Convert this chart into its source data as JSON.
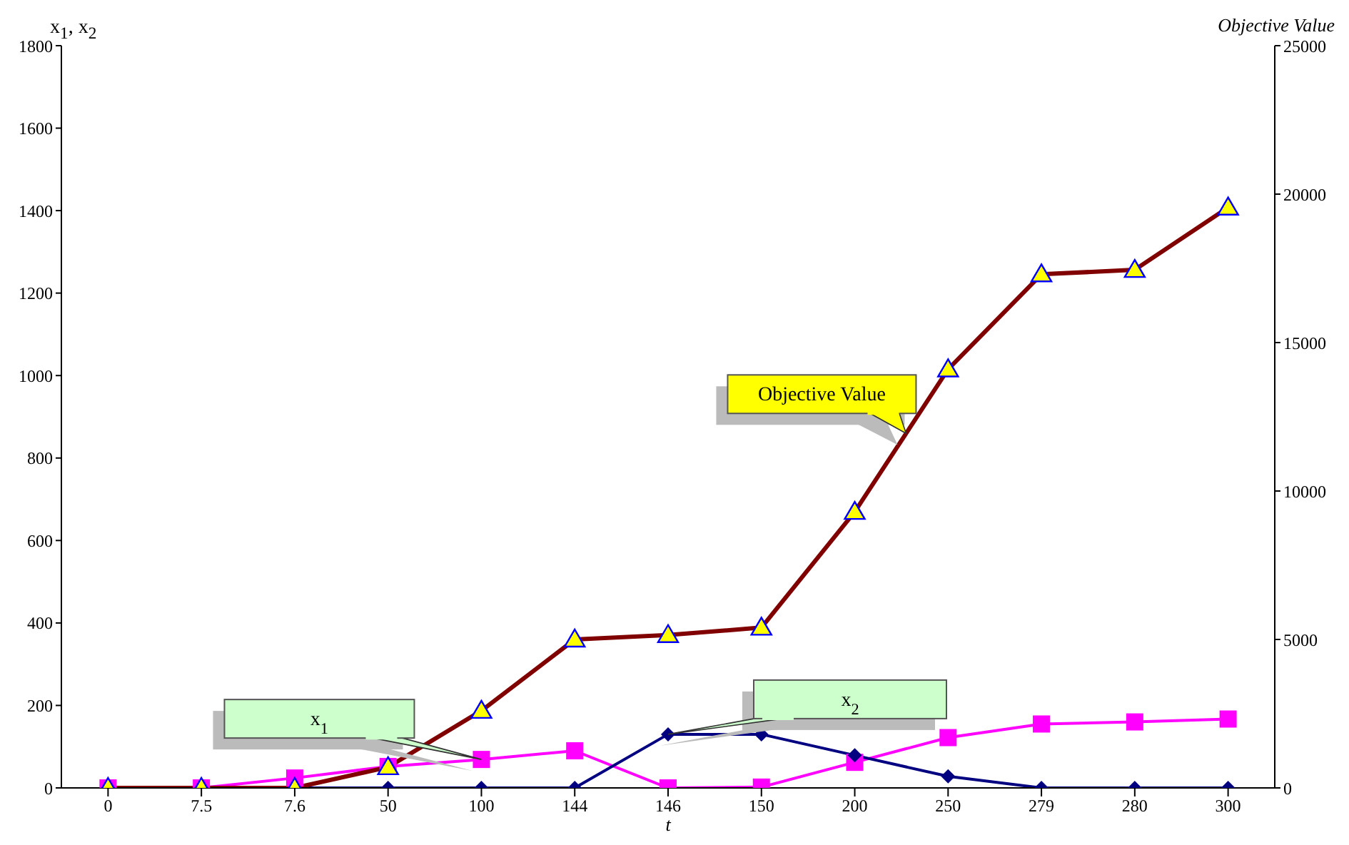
{
  "chart_data": {
    "type": "line",
    "xlabel": "t",
    "ylabel": "x$_{1}$, x$_{2}$",
    "y2label": "Objective Value",
    "categories": [
      "0",
      "7.5",
      "7.6",
      "50",
      "100",
      "144",
      "146",
      "150",
      "200",
      "250",
      "279",
      "280",
      "300"
    ],
    "series": [
      {
        "name": "x$_{1}$",
        "color": "#ff00ff",
        "marker": "square",
        "values": [
          0,
          0,
          24,
          52,
          69,
          90,
          0,
          2,
          62,
          122,
          155,
          160,
          167
        ]
      },
      {
        "name": "x$_{2}$",
        "color": "#000080",
        "marker": "diamond",
        "values": [
          0,
          0,
          0,
          0,
          0,
          0,
          130,
          130,
          79,
          28,
          0,
          0,
          0
        ]
      },
      {
        "name": "Objective Value",
        "color": "#800000",
        "marker": "triangle",
        "axis": "y2",
        "values": [
          0,
          0,
          0,
          700,
          2600,
          5000,
          5150,
          5400,
          9300,
          14100,
          17300,
          17450,
          19550
        ]
      }
    ],
    "ylim": [
      0,
      1800
    ],
    "yticks": [
      0,
      200,
      400,
      600,
      800,
      1000,
      1200,
      1400,
      1600,
      1800
    ],
    "y2lim": [
      0,
      25000
    ],
    "y2ticks": [
      0,
      5000,
      10000,
      15000,
      20000,
      25000
    ],
    "grid": false,
    "legend": false,
    "line_style": "solid"
  }
}
